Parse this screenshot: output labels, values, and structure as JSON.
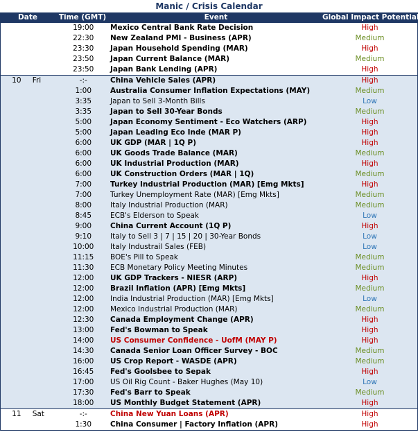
{
  "title": "Manic / Crisis Calendar",
  "headers": {
    "date": "Date",
    "time": "Time (GMT)",
    "event": "Event",
    "impact": "Global Impact Potential"
  },
  "colors": {
    "header_bg": "#1f3864",
    "shaded_bg": "#dce6f1",
    "high": "#c00000",
    "medium": "#6b8e23",
    "low": "#2e75b6"
  },
  "days": [
    {
      "day": "",
      "weekday": "",
      "shaded": false,
      "events": [
        {
          "time": "19:00",
          "event": "Mexico Central Bank Rate Decision",
          "style": "b",
          "impact": "High"
        },
        {
          "time": "22:30",
          "event": "New Zealand PMI - Business (APR)",
          "style": "b",
          "impact": "Medium"
        },
        {
          "time": "23:30",
          "event": "Japan Household Spending (MAR)",
          "style": "b",
          "impact": "High"
        },
        {
          "time": "23:50",
          "event": "Japan Current Balance (MAR)",
          "style": "b",
          "impact": "Medium"
        },
        {
          "time": "23:50",
          "event": "Japan Bank Lending (APR)",
          "style": "b",
          "impact": "High"
        }
      ]
    },
    {
      "day": "10",
      "weekday": "Fri",
      "shaded": true,
      "events": [
        {
          "time": "-:-",
          "event": "China Vehicle Sales (APR)",
          "style": "b",
          "impact": "High"
        },
        {
          "time": "1:00",
          "event": "Australia Consumer Inflation Expectations (MAY)",
          "style": "b",
          "impact": "Medium"
        },
        {
          "time": "3:35",
          "event": "Japan to Sell 3-Month Bills",
          "style": "",
          "impact": "Low"
        },
        {
          "time": "3:35",
          "event": "Japan to Sell 30-Year Bonds",
          "style": "b",
          "impact": "Medium"
        },
        {
          "time": "5:00",
          "event": "Japan Economy Sentiment - Eco Watchers (ARP)",
          "style": "b",
          "impact": "High"
        },
        {
          "time": "5:00",
          "event": "Japan Leading Eco Inde (MAR P)",
          "style": "b",
          "impact": "High"
        },
        {
          "time": "6:00",
          "event": "UK GDP (MAR | 1Q P)",
          "style": "b",
          "impact": "High"
        },
        {
          "time": "6:00",
          "event": "UK Goods Trade Balance (MAR)",
          "style": "b",
          "impact": "Medium"
        },
        {
          "time": "6:00",
          "event": "UK Industrial Production (MAR)",
          "style": "b",
          "impact": "High"
        },
        {
          "time": "6:00",
          "event": "UK Construction Orders (MAR | 1Q)",
          "style": "b",
          "impact": "Medium"
        },
        {
          "time": "7:00",
          "event": "Turkey Industrial Production (MAR) [Emg Mkts]",
          "style": "b",
          "impact": "High"
        },
        {
          "time": "7:00",
          "event": "Turkey Unemployment Rate (MAR) [Emg Mkts]",
          "style": "",
          "impact": "Medium"
        },
        {
          "time": "8:00",
          "event": "Italy Industrial Production (MAR)",
          "style": "",
          "impact": "Medium"
        },
        {
          "time": "8:45",
          "event": "ECB's Elderson to Speak",
          "style": "",
          "impact": "Low"
        },
        {
          "time": "9:00",
          "event": "China Current Account (1Q P)",
          "style": "b",
          "impact": "High"
        },
        {
          "time": "9:10",
          "event": "Italy to Sell 3 | 7 | 15 | 20 | 30-Year Bonds",
          "style": "",
          "impact": "Low"
        },
        {
          "time": "10:00",
          "event": "Italy Industrail Sales (FEB)",
          "style": "",
          "impact": "Low"
        },
        {
          "time": "11:15",
          "event": "BOE's Pill to Speak",
          "style": "",
          "impact": "Medium"
        },
        {
          "time": "11:30",
          "event": "ECB Monetary Policy Meeting Minutes",
          "style": "",
          "impact": "Medium"
        },
        {
          "time": "12:00",
          "event": "UK GDP Trackers - NIESR (ARP)",
          "style": "b",
          "impact": "High"
        },
        {
          "time": "12:00",
          "event": "Brazil Inflation (APR) [Emg Mkts]",
          "style": "b",
          "impact": "Medium"
        },
        {
          "time": "12:00",
          "event": "India Industrial Production (MAR) [Emg Mkts]",
          "style": "",
          "impact": "Low"
        },
        {
          "time": "12:00",
          "event": "Mexico Industrial Production (MAR)",
          "style": "",
          "impact": "Medium"
        },
        {
          "time": "12:30",
          "event": "Canada Employment Change (APR)",
          "style": "b",
          "impact": "High"
        },
        {
          "time": "13:00",
          "event": "Fed's Bowman to Speak",
          "style": "b",
          "impact": "High"
        },
        {
          "time": "14:00",
          "event": "US Consumer Confidence - UofM (MAY P)",
          "style": "red",
          "impact": "High"
        },
        {
          "time": "14:30",
          "event": "Canada Senior Loan Officer Survey - BOC",
          "style": "b",
          "impact": "Medium"
        },
        {
          "time": "16:00",
          "event": "US Crop Report - WASDE (APR)",
          "style": "b",
          "impact": "Medium"
        },
        {
          "time": "16:45",
          "event": "Fed's Goolsbee to Sepak",
          "style": "b",
          "impact": "High"
        },
        {
          "time": "17:00",
          "event": "US Oil Rig Count - Baker Hughes (May 10)",
          "style": "",
          "impact": "Low"
        },
        {
          "time": "17:30",
          "event": "Fed's Barr to Speak",
          "style": "b",
          "impact": "Medium"
        },
        {
          "time": "18:00",
          "event": "US Monthly Budget Statement (APR)",
          "style": "b",
          "impact": "High"
        }
      ]
    },
    {
      "day": "11",
      "weekday": "Sat",
      "shaded": false,
      "events": [
        {
          "time": "-:-",
          "event": "China New Yuan Loans (APR)",
          "style": "red",
          "impact": "High"
        },
        {
          "time": "1:30",
          "event": "China Consumer | Factory Inflation (APR)",
          "style": "b",
          "impact": "High"
        }
      ]
    }
  ]
}
